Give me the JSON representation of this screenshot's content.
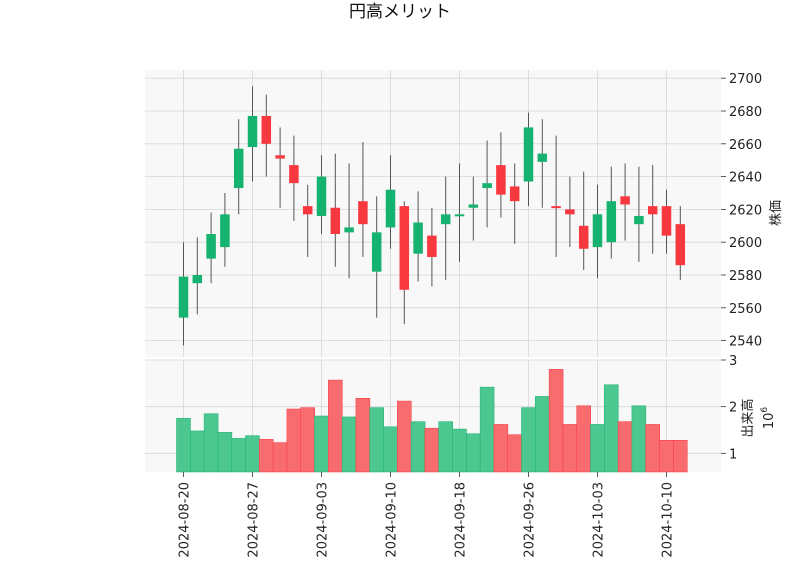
{
  "chart_data": {
    "type": "candlestick",
    "title": "円高メリット",
    "price_axis": {
      "label": "株価",
      "ylim": [
        2530,
        2705
      ],
      "ticks": [
        2540,
        2560,
        2580,
        2600,
        2620,
        2640,
        2660,
        2680,
        2700
      ]
    },
    "volume_axis": {
      "label": "出来高",
      "exponent_label": "10",
      "exponent": "6",
      "ylim": [
        0.6,
        3.0
      ],
      "ticks": [
        1,
        2,
        3
      ]
    },
    "x_tick_labels": [
      "2024-08-20",
      "2024-08-27",
      "2024-09-03",
      "2024-09-10",
      "2024-09-18",
      "2024-09-26",
      "2024-10-03",
      "2024-10-10"
    ],
    "x_tick_indices": [
      0,
      5,
      10,
      15,
      20,
      25,
      30,
      35
    ],
    "grid": true,
    "colors": {
      "up": "#16b26f",
      "down": "#f8383f",
      "wick": "#555555",
      "vol_up": "#4cc790",
      "vol_down": "#f86b6e",
      "grid": "#d6d6d6",
      "panel_bg": "#f8f8f8"
    },
    "candles": [
      {
        "date": "2024-08-20",
        "open": 2554,
        "high": 2600,
        "low": 2537,
        "close": 2579,
        "volume": 1.75
      },
      {
        "date": "2024-08-21",
        "open": 2575,
        "high": 2603,
        "low": 2556,
        "close": 2580,
        "volume": 1.48
      },
      {
        "date": "2024-08-22",
        "open": 2590,
        "high": 2618,
        "low": 2575,
        "close": 2605,
        "volume": 1.85
      },
      {
        "date": "2024-08-23",
        "open": 2597,
        "high": 2630,
        "low": 2585,
        "close": 2617,
        "volume": 1.45
      },
      {
        "date": "2024-08-26",
        "open": 2633,
        "high": 2675,
        "low": 2617,
        "close": 2657,
        "volume": 1.32
      },
      {
        "date": "2024-08-27",
        "open": 2658,
        "high": 2695,
        "low": 2637,
        "close": 2677,
        "volume": 1.38
      },
      {
        "date": "2024-08-28",
        "open": 2677,
        "high": 2690,
        "low": 2640,
        "close": 2660,
        "volume": 1.3
      },
      {
        "date": "2024-08-29",
        "open": 2653,
        "high": 2670,
        "low": 2621,
        "close": 2651,
        "volume": 1.23
      },
      {
        "date": "2024-08-30",
        "open": 2647,
        "high": 2665,
        "low": 2613,
        "close": 2636,
        "volume": 1.95
      },
      {
        "date": "2024-09-02",
        "open": 2622,
        "high": 2635,
        "low": 2591,
        "close": 2617,
        "volume": 1.98
      },
      {
        "date": "2024-09-03",
        "open": 2616,
        "high": 2653,
        "low": 2605,
        "close": 2640,
        "volume": 1.8
      },
      {
        "date": "2024-09-04",
        "open": 2621,
        "high": 2654,
        "low": 2585,
        "close": 2605,
        "volume": 2.57
      },
      {
        "date": "2024-09-05",
        "open": 2606,
        "high": 2648,
        "low": 2578,
        "close": 2609,
        "volume": 1.78
      },
      {
        "date": "2024-09-06",
        "open": 2625,
        "high": 2661,
        "low": 2591,
        "close": 2611,
        "volume": 2.18
      },
      {
        "date": "2024-09-09",
        "open": 2582,
        "high": 2628,
        "low": 2554,
        "close": 2606,
        "volume": 1.98
      },
      {
        "date": "2024-09-10",
        "open": 2609,
        "high": 2653,
        "low": 2596,
        "close": 2632,
        "volume": 1.57
      },
      {
        "date": "2024-09-11",
        "open": 2622,
        "high": 2625,
        "low": 2550,
        "close": 2571,
        "volume": 2.12
      },
      {
        "date": "2024-09-12",
        "open": 2593,
        "high": 2631,
        "low": 2576,
        "close": 2612,
        "volume": 1.68
      },
      {
        "date": "2024-09-13",
        "open": 2604,
        "high": 2621,
        "low": 2573,
        "close": 2591,
        "volume": 1.54
      },
      {
        "date": "2024-09-17",
        "open": 2611,
        "high": 2640,
        "low": 2577,
        "close": 2617,
        "volume": 1.68
      },
      {
        "date": "2024-09-18",
        "open": 2617,
        "high": 2648,
        "low": 2588,
        "close": 2617,
        "volume": 1.52
      },
      {
        "date": "2024-09-19",
        "open": 2621,
        "high": 2640,
        "low": 2601,
        "close": 2623,
        "volume": 1.42
      },
      {
        "date": "2024-09-20",
        "open": 2633,
        "high": 2662,
        "low": 2609,
        "close": 2636,
        "volume": 2.42
      },
      {
        "date": "2024-09-24",
        "open": 2647,
        "high": 2667,
        "low": 2615,
        "close": 2629,
        "volume": 1.62
      },
      {
        "date": "2024-09-25",
        "open": 2634,
        "high": 2648,
        "low": 2599,
        "close": 2625,
        "volume": 1.4
      },
      {
        "date": "2024-09-26",
        "open": 2637,
        "high": 2679,
        "low": 2622,
        "close": 2670,
        "volume": 1.98
      },
      {
        "date": "2024-09-27",
        "open": 2649,
        "high": 2675,
        "low": 2621,
        "close": 2654,
        "volume": 2.22
      },
      {
        "date": "2024-09-30",
        "open": 2622,
        "high": 2665,
        "low": 2591,
        "close": 2621,
        "volume": 2.8
      },
      {
        "date": "2024-10-01",
        "open": 2620,
        "high": 2640,
        "low": 2597,
        "close": 2617,
        "volume": 1.62
      },
      {
        "date": "2024-10-02",
        "open": 2610,
        "high": 2643,
        "low": 2583,
        "close": 2596,
        "volume": 2.02
      },
      {
        "date": "2024-10-03",
        "open": 2597,
        "high": 2635,
        "low": 2578,
        "close": 2617,
        "volume": 1.62
      },
      {
        "date": "2024-10-04",
        "open": 2600,
        "high": 2646,
        "low": 2590,
        "close": 2625,
        "volume": 2.47
      },
      {
        "date": "2024-10-07",
        "open": 2628,
        "high": 2648,
        "low": 2601,
        "close": 2623,
        "volume": 1.68
      },
      {
        "date": "2024-10-08",
        "open": 2611,
        "high": 2646,
        "low": 2588,
        "close": 2616,
        "volume": 2.02
      },
      {
        "date": "2024-10-09",
        "open": 2622,
        "high": 2647,
        "low": 2593,
        "close": 2617,
        "volume": 1.62
      },
      {
        "date": "2024-10-10",
        "open": 2622,
        "high": 2632,
        "low": 2593,
        "close": 2604,
        "volume": 1.28
      },
      {
        "date": "2024-10-11",
        "open": 2611,
        "high": 2622,
        "low": 2577,
        "close": 2586,
        "volume": 1.28
      }
    ]
  }
}
